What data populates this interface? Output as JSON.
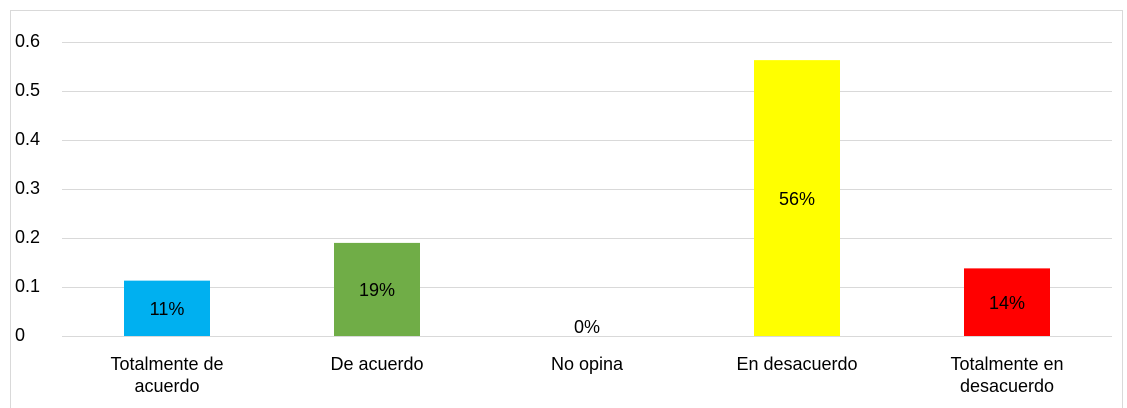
{
  "chart_data": {
    "type": "bar",
    "categories": [
      "Totalmente de acuerdo",
      "De acuerdo",
      "No opina",
      "En desacuerdo",
      "Totalmente en desacuerdo"
    ],
    "values": [
      0.113,
      0.19,
      0,
      0.563,
      0.138
    ],
    "value_labels": [
      "11%",
      "19%",
      "0%",
      "56%",
      "14%"
    ],
    "colors": [
      "#00b0f0",
      "#70ad47",
      "#a5a5a5",
      "#ffff00",
      "#ff0000"
    ],
    "ylim": [
      0,
      0.6
    ],
    "yticks": [
      0,
      0.1,
      0.2,
      0.3,
      0.4,
      0.5,
      0.6
    ],
    "grid": true
  }
}
